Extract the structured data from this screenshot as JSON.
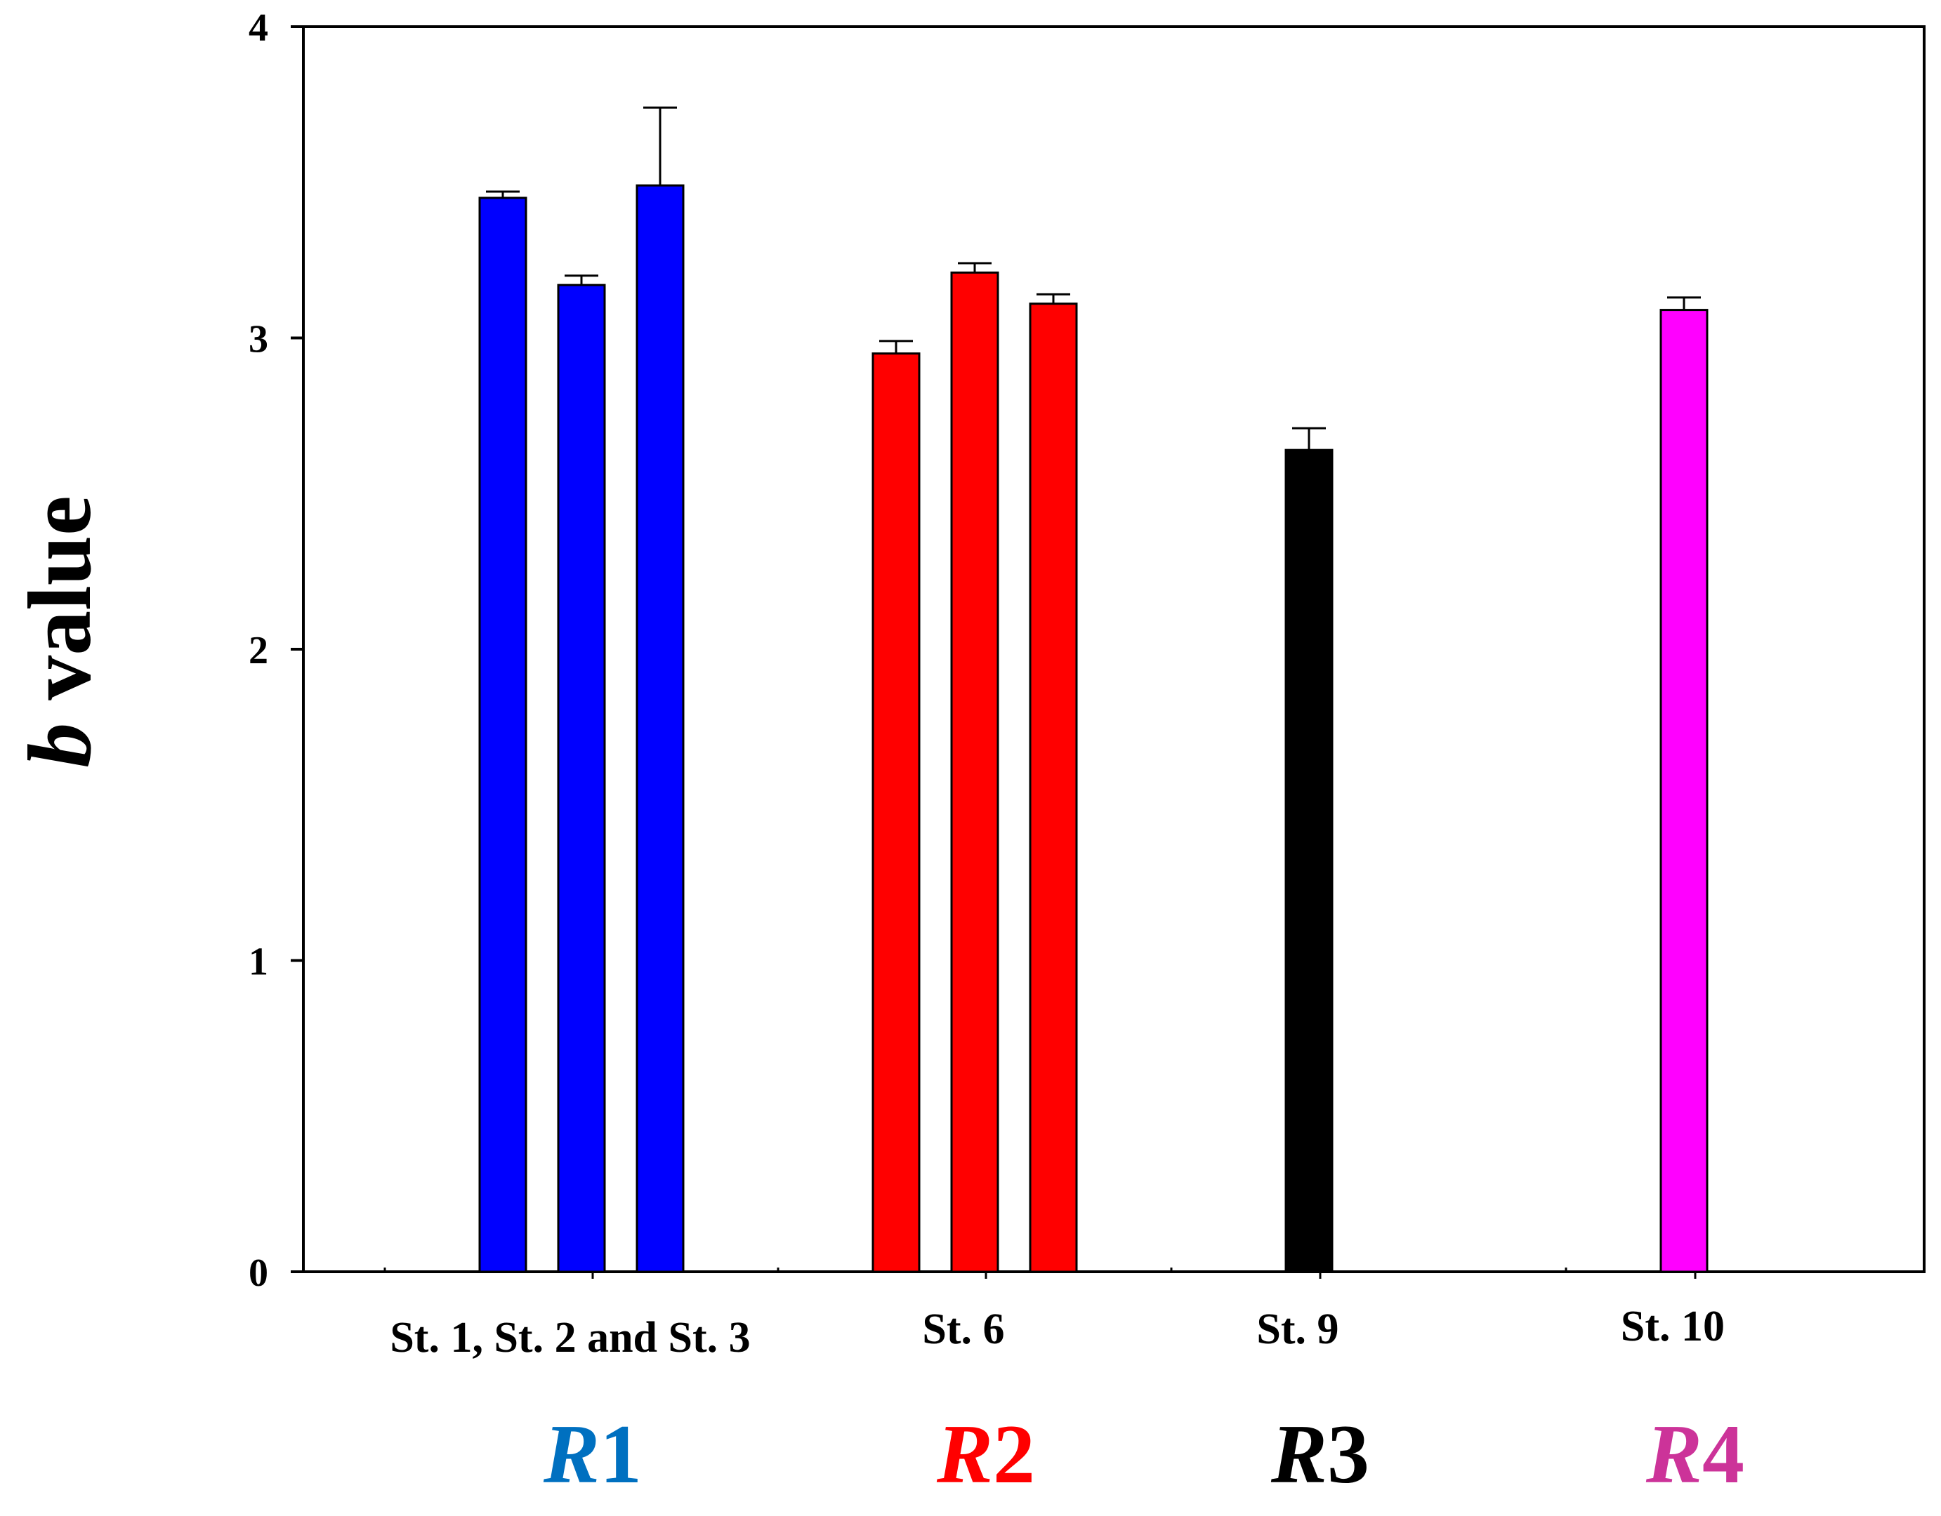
{
  "chart_data": {
    "type": "bar",
    "title": "",
    "ylabel": {
      "variable": "b",
      "rest": " value"
    },
    "xlabel": "",
    "ylim": [
      0,
      4
    ],
    "yticks": [
      "0",
      "1",
      "2",
      "3",
      "4"
    ],
    "groups": [
      {
        "category": "St. 1, St. 2 and St. 3",
        "region": {
          "letter": "R",
          "number": "1"
        },
        "color": "#0000ff",
        "label_color": "#0070c0",
        "values": [
          3.45,
          3.17,
          3.49
        ],
        "errors": [
          0.02,
          0.03,
          0.25
        ]
      },
      {
        "category": "St. 6",
        "region": {
          "letter": "R",
          "number": "2"
        },
        "color": "#ff0000",
        "label_color": "#ff0000",
        "values": [
          2.95,
          3.21,
          3.11
        ],
        "errors": [
          0.04,
          0.03,
          0.03
        ]
      },
      {
        "category": "St. 9",
        "region": {
          "letter": "R",
          "number": "3"
        },
        "color": "#000000",
        "label_color": "#000000",
        "values": [
          2.64
        ],
        "errors": [
          0.07
        ]
      },
      {
        "category": "St. 10",
        "region": {
          "letter": "R",
          "number": "4"
        },
        "color": "#ff00ff",
        "label_color": "#cc3399",
        "values": [
          3.09
        ],
        "errors": [
          0.04
        ]
      }
    ]
  }
}
